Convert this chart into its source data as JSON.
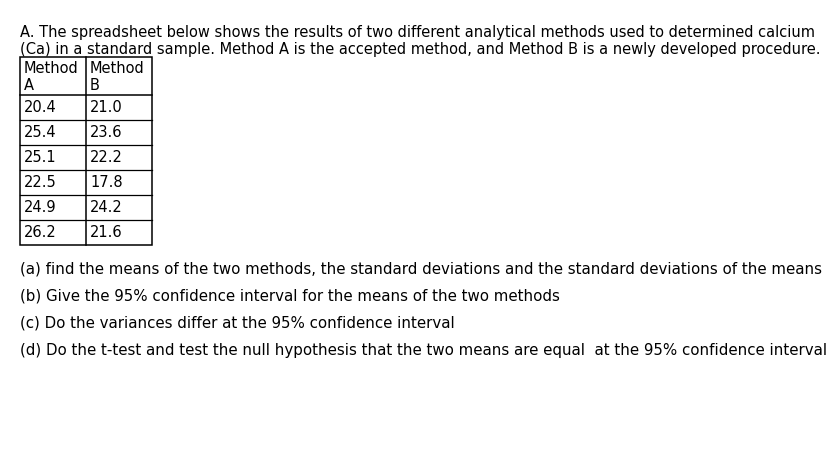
{
  "title_line1": "A. The spreadsheet below shows the results of two different analytical methods used to determined calcium",
  "title_line2": "(Ca) in a standard sample. Method A is the accepted method, and Method B is a newly developed procedure.",
  "method_a": [
    20.4,
    25.4,
    25.1,
    22.5,
    24.9,
    26.2
  ],
  "method_b": [
    21.0,
    23.6,
    22.2,
    17.8,
    24.2,
    21.6
  ],
  "question_a": "(a) find the means of the two methods, the standard deviations and the standard deviations of the means",
  "question_b": "(b) Give the 95% confidence interval for the means of the two methods",
  "question_c": "(c) Do the variances differ at the 95% confidence interval",
  "question_d": "(d) Do the t-test and test the null hypothesis that the two means are equal  at the 95% confidence interval",
  "bg_color": "#ffffff",
  "text_color": "#000000",
  "table_border_color": "#000000",
  "font_size_title": 10.5,
  "font_size_table": 10.5,
  "font_size_questions": 10.8
}
